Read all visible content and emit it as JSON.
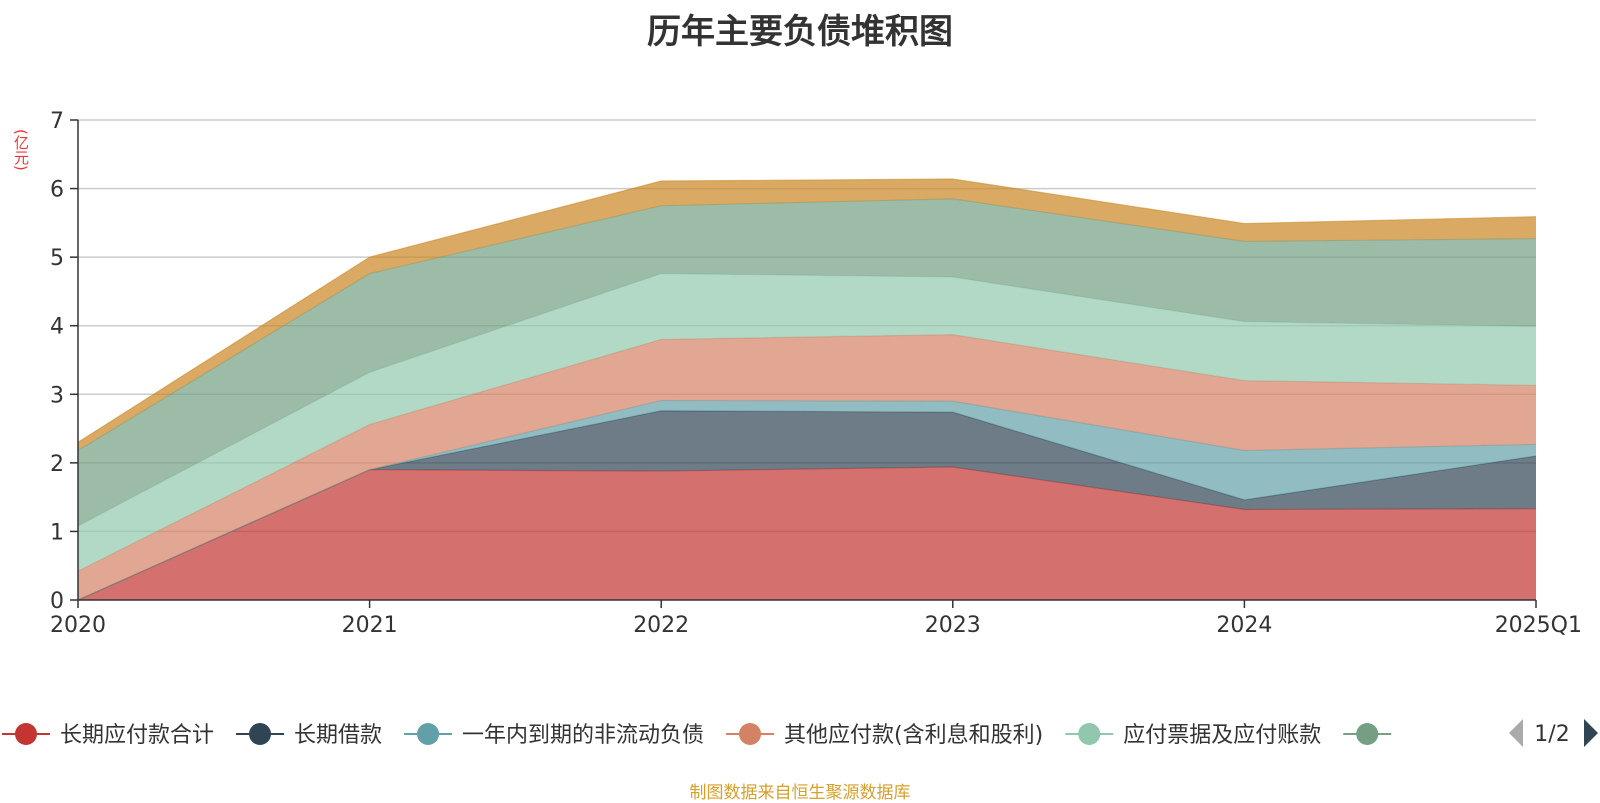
{
  "chart_data": {
    "type": "area",
    "title": "历年主要负债堆积图",
    "ylabel": "(亿元)",
    "ylim": [
      0,
      7
    ],
    "yticks": [
      0,
      1,
      2,
      3,
      4,
      5,
      6,
      7
    ],
    "categories": [
      "2020",
      "2021",
      "2022",
      "2023",
      "2024",
      "2025Q1"
    ],
    "stacked": true,
    "grid": true,
    "series": [
      {
        "name": "长期应付款合计",
        "color": "#c23531",
        "values": [
          0.0,
          1.9,
          1.88,
          1.94,
          1.32,
          1.33
        ]
      },
      {
        "name": "长期借款",
        "color": "#2f4554",
        "values": [
          0.0,
          0.0,
          0.88,
          0.8,
          0.14,
          0.77
        ]
      },
      {
        "name": "一年内到期的非流动负债",
        "color": "#61a0a8",
        "values": [
          0.0,
          0.0,
          0.15,
          0.16,
          0.72,
          0.17
        ]
      },
      {
        "name": "其他应付款(含利息和股利)",
        "color": "#d48265",
        "values": [
          0.42,
          0.66,
          0.89,
          0.97,
          1.02,
          0.86
        ]
      },
      {
        "name": "应付票据及应付账款",
        "color": "#91c7ae",
        "values": [
          0.66,
          0.76,
          0.96,
          0.84,
          0.86,
          0.86
        ]
      },
      {
        "name": "",
        "color": "#749f83",
        "values": [
          1.1,
          1.44,
          0.99,
          1.14,
          1.17,
          1.28
        ]
      },
      {
        "name": "",
        "color": "#ca8622",
        "values": [
          0.12,
          0.24,
          0.36,
          0.29,
          0.26,
          0.32
        ]
      }
    ]
  },
  "legend": {
    "page_indicator": "1/2",
    "prev_icon": "triangle-left-icon",
    "next_icon": "triangle-right-icon",
    "prev_color": "#aaaaaa",
    "next_color": "#2f4554"
  },
  "footer": {
    "source": "制图数据来自恒生聚源数据库"
  }
}
